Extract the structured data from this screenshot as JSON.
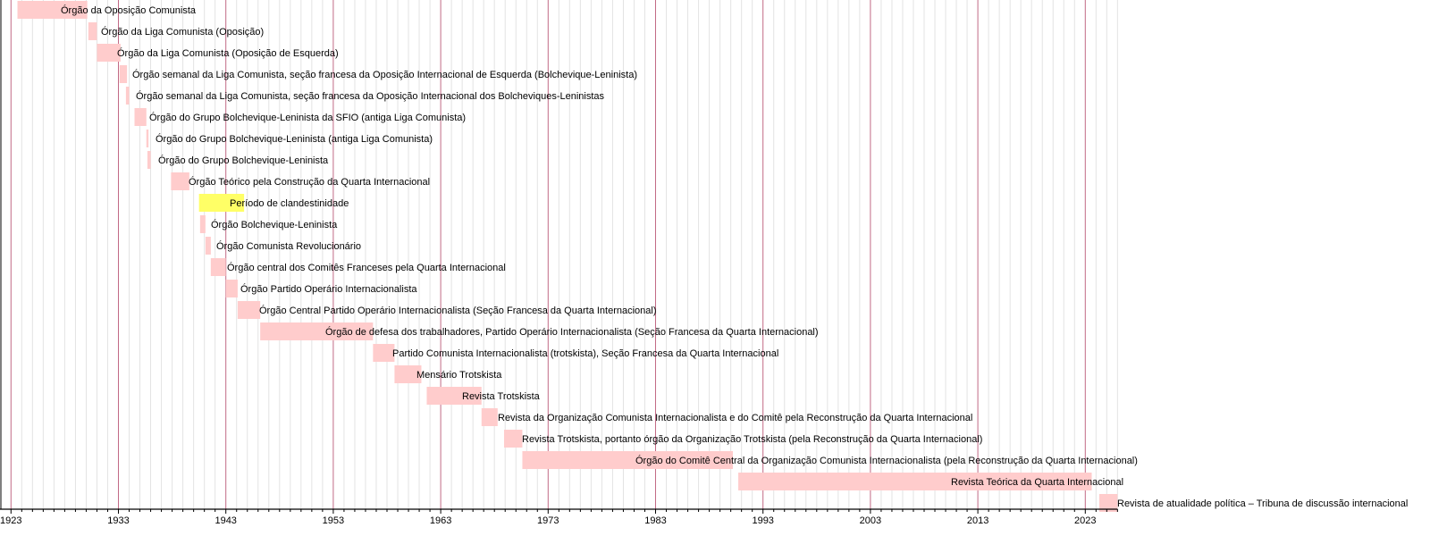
{
  "chart_data": {
    "type": "timeline",
    "title": "",
    "xlabel": "",
    "ylabel": "",
    "xlim": [
      1923,
      2026
    ],
    "major_tick_step": 10,
    "minor_tick_step": 1,
    "tick_labels": [
      "1923",
      "1933",
      "1943",
      "1953",
      "1963",
      "1973",
      "1983",
      "1993",
      "2003",
      "2013",
      "2023"
    ],
    "colors": {
      "bar": "#ffcccc",
      "highlight": "#ffff66",
      "major_grid": "#c26a86",
      "minor_grid": "#e3e3e3"
    },
    "bars": [
      {
        "label": "Órgão da Oposição Comunista",
        "start": 1923.6,
        "end": 1930.1,
        "color": "bar"
      },
      {
        "label": "Órgão da Liga Comunista (Oposição)",
        "start": 1930.2,
        "end": 1931.0,
        "color": "bar"
      },
      {
        "label": "Órgão da Liga Comunista (Oposição de Esquerda)",
        "start": 1931.0,
        "end": 1933.2,
        "color": "bar"
      },
      {
        "label": "Órgão semanal da Liga Comunista, seção francesa da Oposição Internacional de Esquerda (Bolchevique-Leninista)",
        "start": 1933.1,
        "end": 1933.8,
        "color": "bar"
      },
      {
        "label": "Órgão semanal da Liga Comunista, seção francesa da Oposição Internacional dos Bolcheviques-Leninistas",
        "start": 1933.7,
        "end": 1934.0,
        "color": "bar"
      },
      {
        "label": "Órgão do Grupo Bolchevique-Leninista da SFIO (antiga Liga Comunista)",
        "start": 1934.5,
        "end": 1935.6,
        "color": "bar"
      },
      {
        "label": "Órgão do Grupo Bolchevique-Leninista (antiga Liga Comunista)",
        "start": 1935.6,
        "end": 1935.8,
        "color": "bar"
      },
      {
        "label": "Órgão do Grupo Bolchevique-Leninista",
        "start": 1935.7,
        "end": 1936.0,
        "color": "bar"
      },
      {
        "label": "Órgão Teórico pela Construção da Quarta Internacional",
        "start": 1937.9,
        "end": 1939.6,
        "color": "bar"
      },
      {
        "label": "Período de clandestinidade",
        "start": 1940.5,
        "end": 1944.7,
        "color": "highlight"
      },
      {
        "label": "Órgão Bolchevique-Leninista",
        "start": 1940.6,
        "end": 1941.1,
        "color": "bar"
      },
      {
        "label": "Órgão Comunista Revolucionário",
        "start": 1941.1,
        "end": 1941.6,
        "color": "bar"
      },
      {
        "label": "Órgão central dos Comitês Franceses pela Quarta Internacional",
        "start": 1941.6,
        "end": 1943.0,
        "color": "bar"
      },
      {
        "label": "Órgão Partido Operário Internacionalista",
        "start": 1943.0,
        "end": 1944.1,
        "color": "bar"
      },
      {
        "label": "Órgão Central Partido Operário Internacionalista (Seção Francesa da Quarta Internacional)",
        "start": 1944.1,
        "end": 1946.2,
        "color": "bar"
      },
      {
        "label": "Órgão de defesa dos trabalhadores, Partido Operário Internacionalista (Seção Francesa da Quarta Internacional)",
        "start": 1946.2,
        "end": 1956.7,
        "color": "bar"
      },
      {
        "label": "Partido Comunista Internacionalista (trotskista), Seção Francesa da Quarta Internacional",
        "start": 1956.7,
        "end": 1958.7,
        "color": "bar"
      },
      {
        "label": "Mensário Trotskista",
        "start": 1958.7,
        "end": 1961.2,
        "color": "bar"
      },
      {
        "label": "Revista Trotskista",
        "start": 1961.7,
        "end": 1966.8,
        "color": "bar"
      },
      {
        "label": "Revista da Organização Comunista Internacionalista e do Comitê pela Reconstrução da Quarta Internacional",
        "start": 1966.8,
        "end": 1968.3,
        "color": "bar"
      },
      {
        "label": "Revista Trotskista, portanto órgão da Organização Trotskista (pela Reconstrução da Quarta Internacional)",
        "start": 1968.9,
        "end": 1970.6,
        "color": "bar"
      },
      {
        "label": "Órgão do Comitê Central da Organização Comunista Internacionalista (pela Reconstrução da Quarta Internacional)",
        "start": 1970.6,
        "end": 1990.2,
        "color": "bar"
      },
      {
        "label": "Revista Teórica da Quarta Internacional",
        "start": 1990.7,
        "end": 2023.6,
        "color": "bar"
      },
      {
        "label": "Revista de atualidade política – Tribuna de discussão internacional",
        "start": 2024.3,
        "end": 2026.0,
        "color": "bar"
      }
    ]
  }
}
